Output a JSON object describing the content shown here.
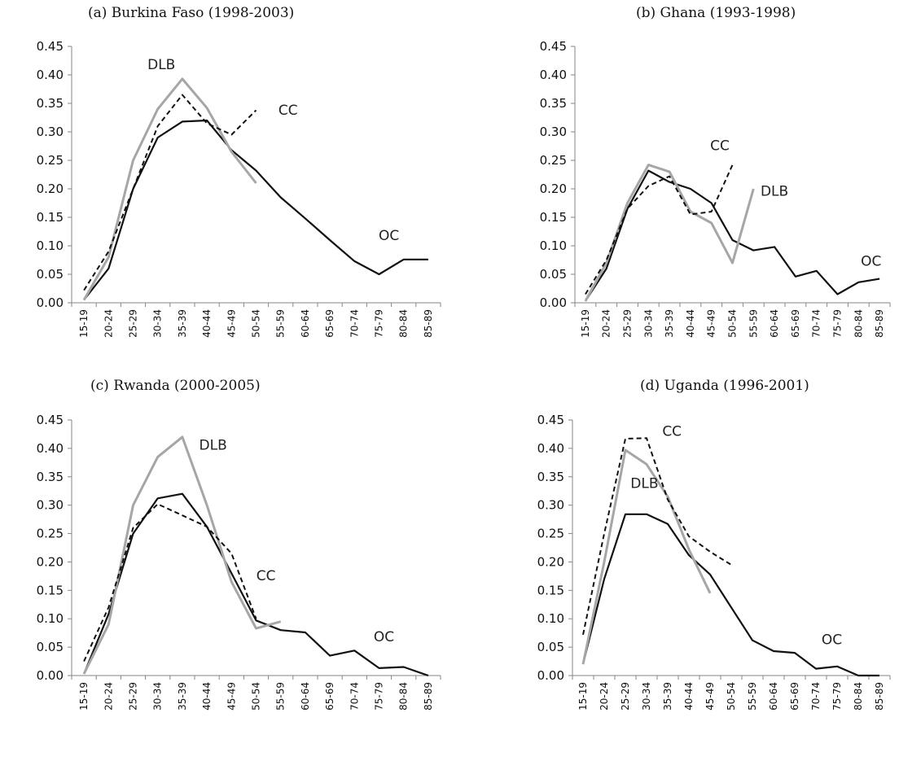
{
  "chart_data": [
    {
      "type": "line",
      "title": "(a)   Burkina Faso (1998-2003)",
      "categories": [
        "15-19",
        "20-24",
        "25-29",
        "30-34",
        "35-39",
        "40-44",
        "45-49",
        "50-54",
        "55-59",
        "60-64",
        "65-69",
        "70-74",
        "75-79",
        "80-84",
        "85-89"
      ],
      "yticks": [
        "0.00",
        "0.05",
        "0.10",
        "0.15",
        "0.20",
        "0.25",
        "0.30",
        "0.35",
        "0.40",
        "0.45"
      ],
      "ylim": [
        0,
        0.45
      ],
      "series": [
        {
          "name": "OC",
          "style": "solid-black",
          "values": [
            0.005,
            0.06,
            0.2,
            0.29,
            0.318,
            0.32,
            0.268,
            0.232,
            0.185,
            0.148,
            0.11,
            0.073,
            0.05,
            0.076,
            0.076
          ]
        },
        {
          "name": "DLB",
          "style": "solid-gray",
          "values": [
            0.005,
            0.08,
            0.25,
            0.34,
            0.393,
            0.342,
            0.265,
            0.21,
            null,
            null,
            null,
            null,
            null,
            null,
            null
          ]
        },
        {
          "name": "CC",
          "style": "dashed-black",
          "values": [
            0.022,
            0.09,
            0.2,
            0.31,
            0.365,
            0.315,
            0.295,
            0.338,
            null,
            null,
            null,
            null,
            null,
            null,
            null
          ]
        }
      ],
      "labels": [
        {
          "text": "DLB",
          "x": 3.15,
          "y": 0.41
        },
        {
          "text": "CC",
          "x": 8.3,
          "y": 0.33
        },
        {
          "text": "OC",
          "x": 12.4,
          "y": 0.11
        }
      ]
    },
    {
      "type": "line",
      "title": "(b)   Ghana (1993-1998)",
      "categories": [
        "15-19",
        "20-24",
        "25-29",
        "30-34",
        "35-39",
        "40-44",
        "45-49",
        "50-54",
        "55-59",
        "60-64",
        "65-69",
        "70-74",
        "75-79",
        "80-84",
        "85-89"
      ],
      "yticks": [
        "0.00",
        "0.05",
        "0.10",
        "0.15",
        "0.20",
        "0.25",
        "0.30",
        "0.35",
        "0.40",
        "0.45"
      ],
      "ylim": [
        0,
        0.45
      ],
      "series": [
        {
          "name": "OC",
          "style": "solid-black",
          "values": [
            0.003,
            0.06,
            0.165,
            0.232,
            0.212,
            0.2,
            0.175,
            0.11,
            0.092,
            0.098,
            0.046,
            0.056,
            0.015,
            0.036,
            0.042
          ]
        },
        {
          "name": "DLB",
          "style": "solid-gray",
          "values": [
            0.003,
            0.07,
            0.175,
            0.242,
            0.23,
            0.16,
            0.14,
            0.07,
            0.2,
            null,
            null,
            null,
            null,
            null,
            null
          ]
        },
        {
          "name": "CC",
          "style": "dashed-black",
          "values": [
            0.015,
            0.075,
            0.165,
            0.205,
            0.222,
            0.155,
            0.16,
            0.242,
            null,
            null,
            null,
            null,
            null,
            null,
            null
          ]
        }
      ],
      "labels": [
        {
          "text": "CC",
          "x": 6.4,
          "y": 0.268
        },
        {
          "text": "DLB",
          "x": 9.0,
          "y": 0.188
        },
        {
          "text": "OC",
          "x": 13.6,
          "y": 0.065
        }
      ]
    },
    {
      "type": "line",
      "title": "(c)   Rwanda (2000-2005)",
      "categories": [
        "15-19",
        "20-24",
        "25-29",
        "30-34",
        "35-39",
        "40-44",
        "45-49",
        "50-54",
        "55-59",
        "60-64",
        "65-69",
        "70-74",
        "75-79",
        "80-84",
        "85-89"
      ],
      "yticks": [
        "0.00",
        "0.05",
        "0.10",
        "0.15",
        "0.20",
        "0.25",
        "0.30",
        "0.35",
        "0.40",
        "0.45"
      ],
      "ylim": [
        0,
        0.45
      ],
      "series": [
        {
          "name": "OC",
          "style": "solid-black",
          "values": [
            0.003,
            0.108,
            0.25,
            0.312,
            0.32,
            0.262,
            0.18,
            0.097,
            0.08,
            0.076,
            0.035,
            0.044,
            0.013,
            0.015,
            0.0
          ]
        },
        {
          "name": "DLB",
          "style": "solid-gray",
          "values": [
            0.003,
            0.09,
            0.3,
            0.385,
            0.42,
            0.3,
            0.165,
            0.083,
            0.095,
            null,
            null,
            null,
            null,
            null,
            null
          ]
        },
        {
          "name": "CC",
          "style": "dashed-black",
          "values": [
            0.025,
            0.12,
            0.26,
            0.302,
            0.282,
            0.262,
            0.215,
            0.1,
            null,
            null,
            null,
            null,
            null,
            null,
            null
          ]
        }
      ],
      "labels": [
        {
          "text": "DLB",
          "x": 5.25,
          "y": 0.398
        },
        {
          "text": "CC",
          "x": 7.4,
          "y": 0.168
        },
        {
          "text": "OC",
          "x": 12.2,
          "y": 0.06
        }
      ]
    },
    {
      "type": "line",
      "title": "(d)   Uganda (1996-2001)",
      "categories": [
        "15-19",
        "20-24",
        "25-29",
        "30-34",
        "35-39",
        "40-44",
        "45-49",
        "50-54",
        "55-59",
        "60-64",
        "65-69",
        "70-74",
        "75-79",
        "80-84",
        "85-89"
      ],
      "yticks": [
        "0.00",
        "0.05",
        "0.10",
        "0.15",
        "0.20",
        "0.25",
        "0.30",
        "0.35",
        "0.40",
        "0.45"
      ],
      "ylim": [
        0,
        0.45
      ],
      "series": [
        {
          "name": "OC",
          "style": "solid-black",
          "values": [
            0.02,
            0.17,
            0.284,
            0.284,
            0.267,
            0.212,
            0.178,
            0.12,
            0.062,
            0.043,
            0.04,
            0.012,
            0.016,
            0.0,
            0.0
          ]
        },
        {
          "name": "DLB",
          "style": "solid-gray",
          "values": [
            0.02,
            0.2,
            0.397,
            0.372,
            0.315,
            0.222,
            0.145,
            null,
            null,
            null,
            null,
            null,
            null,
            null,
            null
          ]
        },
        {
          "name": "CC",
          "style": "dashed-black",
          "values": [
            0.072,
            0.25,
            0.417,
            0.418,
            0.31,
            0.245,
            0.218,
            0.195,
            null,
            null,
            null,
            null,
            null,
            null,
            null
          ]
        }
      ],
      "labels": [
        {
          "text": "CC",
          "x": 4.2,
          "y": 0.422
        },
        {
          "text": "DLB",
          "x": 2.9,
          "y": 0.33
        },
        {
          "text": "OC",
          "x": 11.75,
          "y": 0.055
        }
      ]
    }
  ]
}
